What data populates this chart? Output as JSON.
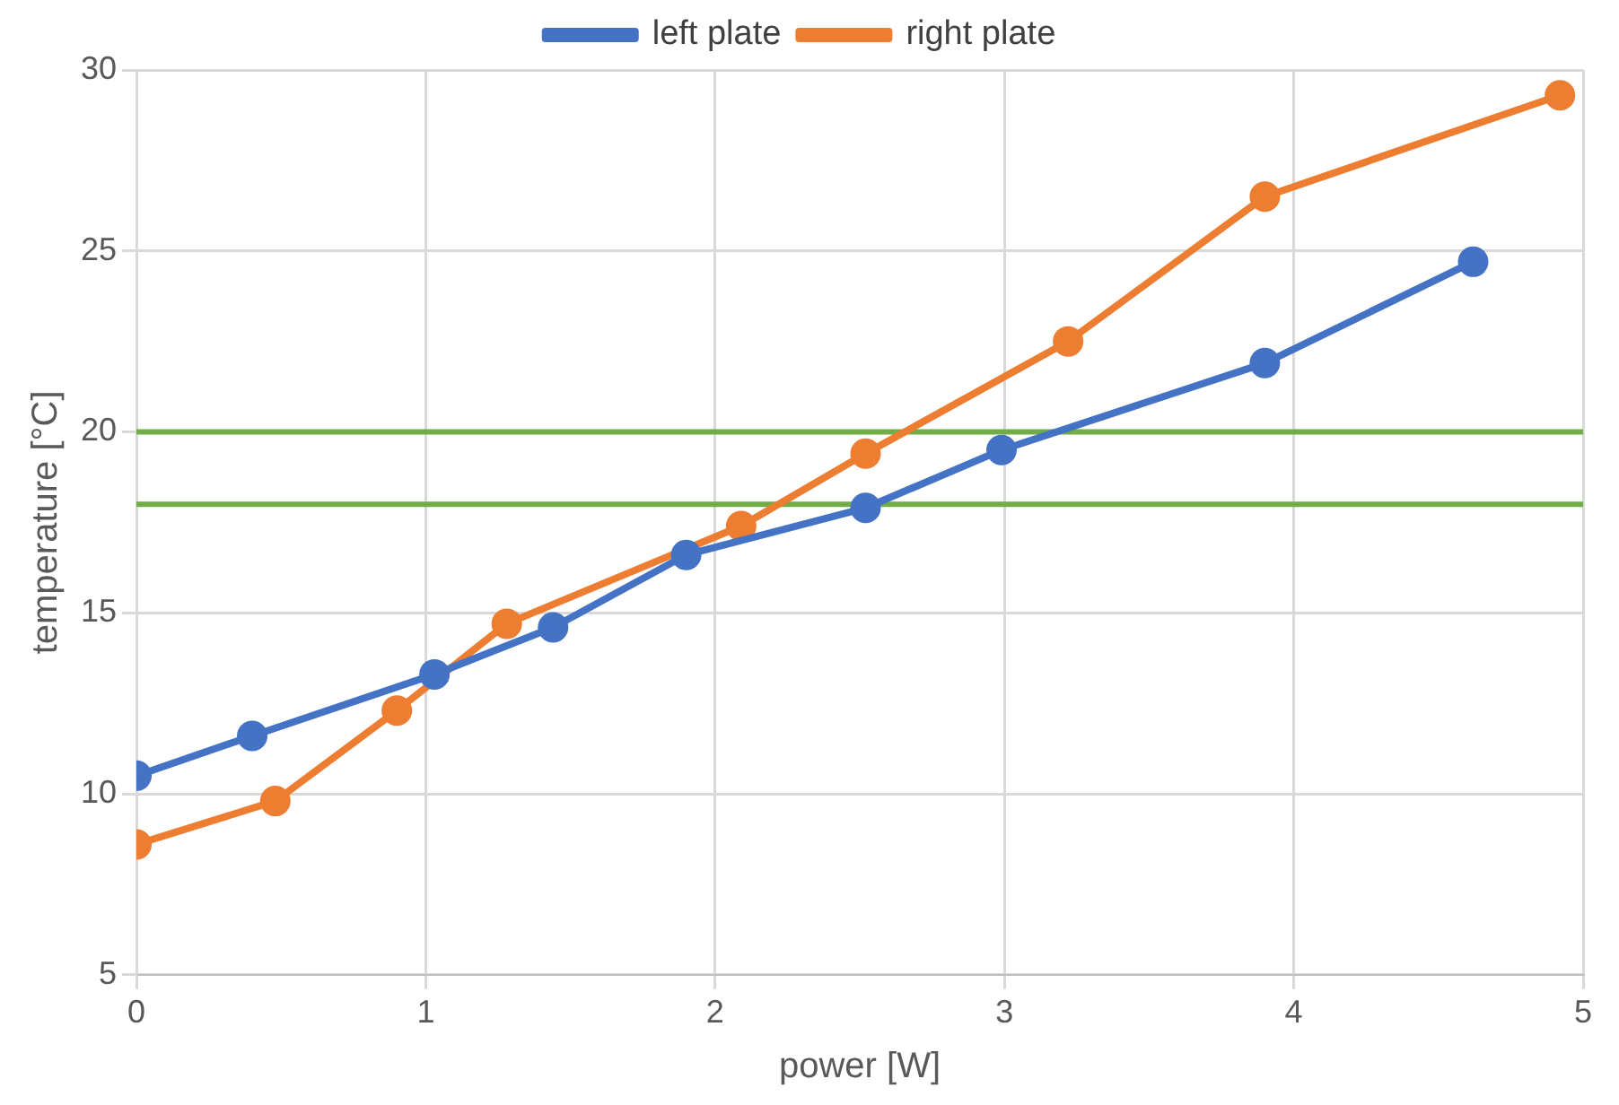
{
  "chart_data": {
    "type": "line",
    "xlabel": "power [W]",
    "ylabel": "temperature [°C]",
    "xlim": [
      0,
      5
    ],
    "xticks": [
      0,
      1,
      2,
      3,
      4,
      5
    ],
    "ylim": [
      5,
      30
    ],
    "yticks": [
      5,
      10,
      15,
      20,
      25,
      30
    ],
    "grid": true,
    "legend": "top",
    "marker": "circle",
    "line_style": "solid",
    "series": [
      {
        "name": "left plate",
        "color": "#4472c4",
        "x": [
          0,
          0.4,
          1.03,
          1.44,
          1.9,
          2.52,
          2.99,
          3.9,
          4.62
        ],
        "values": [
          10.5,
          11.6,
          13.3,
          14.6,
          16.6,
          17.9,
          19.5,
          21.9,
          24.7
        ]
      },
      {
        "name": "right plate",
        "color": "#ed7d31",
        "x": [
          0,
          0.48,
          0.9,
          1.28,
          2.09,
          2.52,
          3.22,
          3.9,
          4.92
        ],
        "values": [
          8.6,
          9.8,
          12.3,
          14.7,
          17.4,
          19.4,
          22.5,
          26.5,
          29.3
        ]
      }
    ],
    "ref_lines": [
      {
        "axis": "y",
        "value": 20,
        "color": "#70ad47"
      },
      {
        "axis": "y",
        "value": 18,
        "color": "#70ad47"
      }
    ]
  }
}
